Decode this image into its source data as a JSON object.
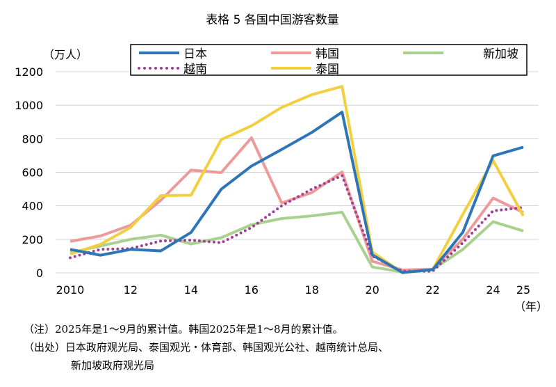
{
  "chart_data": {
    "type": "line",
    "title": "表格 5 各国中国游客数量",
    "ylabel": "（万人）",
    "xlabel_unit": "（年）",
    "ylim": [
      0,
      1200
    ],
    "yticks": [
      0,
      200,
      400,
      600,
      800,
      1000,
      1200
    ],
    "x": [
      2010,
      2011,
      2012,
      2013,
      2014,
      2015,
      2016,
      2017,
      2018,
      2019,
      2020,
      2021,
      2022,
      2023,
      2024,
      2025
    ],
    "xtick_labels": [
      {
        "x": 2010,
        "label": "2010"
      },
      {
        "x": 2012,
        "label": "12"
      },
      {
        "x": 2014,
        "label": "14"
      },
      {
        "x": 2016,
        "label": "16"
      },
      {
        "x": 2018,
        "label": "18"
      },
      {
        "x": 2020,
        "label": "20"
      },
      {
        "x": 2022,
        "label": "22"
      },
      {
        "x": 2024,
        "label": "24"
      },
      {
        "x": 2025,
        "label": "25"
      }
    ],
    "grid": true,
    "legend_position": "top",
    "series": [
      {
        "name": "日本",
        "color": "#2E75B6",
        "dash": "solid",
        "values": [
          140,
          105,
          140,
          131,
          241,
          499,
          637,
          736,
          838,
          959,
          107,
          2,
          19,
          243,
          698,
          750
        ]
      },
      {
        "name": "韩国",
        "color": "#EE9A9A",
        "dash": "solid",
        "values": [
          188,
          220,
          284,
          433,
          613,
          598,
          806,
          417,
          479,
          602,
          69,
          17,
          22,
          202,
          446,
          360
        ]
      },
      {
        "name": "新加坡",
        "color": "#A9D18E",
        "dash": "solid",
        "values": [
          120,
          160,
          200,
          225,
          172,
          210,
          287,
          324,
          340,
          362,
          35,
          5,
          20,
          140,
          305,
          250
        ]
      },
      {
        "name": "越南",
        "color": "#9E3F96",
        "dash": "dotted",
        "values": [
          90,
          140,
          145,
          190,
          195,
          180,
          270,
          400,
          500,
          580,
          100,
          10,
          10,
          180,
          370,
          390
        ]
      },
      {
        "name": "泰国",
        "color": "#F2CF3E",
        "dash": "solid",
        "values": [
          112,
          170,
          271,
          461,
          463,
          795,
          877,
          987,
          1063,
          1112,
          125,
          0,
          20,
          350,
          670,
          340
        ]
      }
    ]
  },
  "notes": {
    "note": "（注）2025年是1～9月的累计值。韩国2025年是1～8月的累计值。",
    "source_line1": "（出处）日本政府观光局、泰国观光・体育部、韩国观光公社、越南统计总局、",
    "source_line2": "新加坡政府观光局"
  }
}
